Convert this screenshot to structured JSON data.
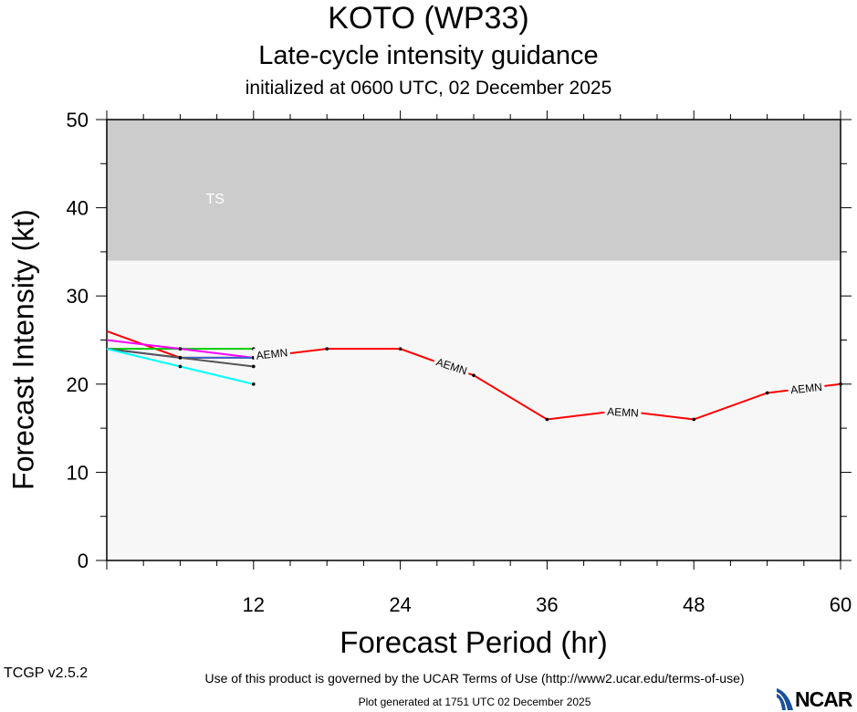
{
  "title": "KOTO (WP33)",
  "subtitle": "Late-cycle intensity guidance",
  "init_text": "initialized at 0600 UTC, 02 December 2025",
  "footer": {
    "terms": "Use of this product is governed by the UCAR Terms of Use (http://www2.ucar.edu/terms-of-use)",
    "generated": "Plot generated at 1751 UTC   02 December 2025",
    "version": "TCGP v2.5.2",
    "logo_text": "NCAR"
  },
  "chart_data": {
    "type": "line",
    "xlabel": "Forecast Period (hr)",
    "ylabel": "Forecast Intensity (kt)",
    "xlim": [
      0,
      60
    ],
    "ylim": [
      0,
      50
    ],
    "xticks": [
      12,
      24,
      36,
      48,
      60
    ],
    "yticks": [
      0,
      10,
      20,
      30,
      40,
      50
    ],
    "bands": [
      {
        "label": "TS",
        "from": 34,
        "to": 50,
        "color": "#cccccc"
      },
      {
        "label": "",
        "from": 0,
        "to": 34,
        "color": "#f7f7f7"
      }
    ],
    "series": [
      {
        "color": "#ff0000",
        "label": "AEMN",
        "x": [
          0,
          6,
          12,
          18,
          24,
          30,
          36,
          42,
          48,
          54,
          60
        ],
        "y": [
          26,
          23,
          23,
          24,
          24,
          21,
          16,
          17,
          16,
          19,
          20
        ]
      },
      {
        "color": "#00cc00",
        "label": "",
        "x": [
          0,
          6,
          12
        ],
        "y": [
          24,
          24,
          24
        ]
      },
      {
        "color": "#ff00ff",
        "label": "",
        "x": [
          0,
          6,
          12
        ],
        "y": [
          25,
          24,
          23
        ]
      },
      {
        "color": "#3366cc",
        "label": "",
        "x": [
          0,
          6,
          12
        ],
        "y": [
          24,
          23,
          23
        ]
      },
      {
        "color": "#555555",
        "label": "",
        "x": [
          0,
          6,
          12
        ],
        "y": [
          24,
          23,
          22
        ]
      },
      {
        "color": "#00ffff",
        "label": "",
        "x": [
          0,
          6,
          12
        ],
        "y": [
          24,
          22,
          20
        ]
      }
    ],
    "point_labels": [
      {
        "text": "AEMN",
        "x": 13.5,
        "y": 23.4,
        "angle": -6
      },
      {
        "text": "AEMN",
        "x": 28.2,
        "y": 22.0,
        "angle": 18
      },
      {
        "text": "AEMN",
        "x": 42.2,
        "y": 16.8,
        "angle": 3
      },
      {
        "text": "AEMN",
        "x": 57.2,
        "y": 19.5,
        "angle": -6
      }
    ]
  }
}
